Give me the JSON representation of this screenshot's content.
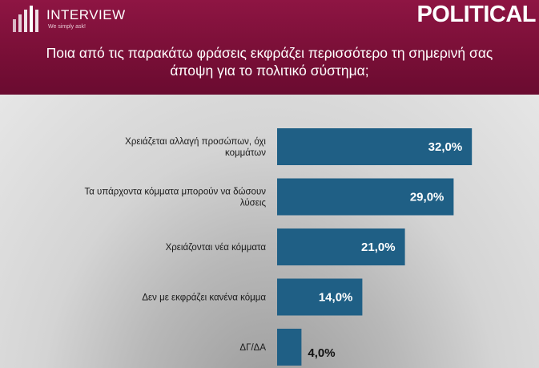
{
  "header": {
    "brand": "INTERVIEW",
    "tagline": "We simply ask!",
    "logo_icon": "bars-logo-icon",
    "badge": "POLITICAL",
    "question": "Ποια από τις παρακάτω φράσεις εκφράζει περισσότερο τη σημερινή σας άποψη για το πολιτικό σύστημα;"
  },
  "colors": {
    "header": "#7a0f37",
    "bar": "#1f5f85",
    "value_inside": "#ffffff",
    "value_outside": "#111111"
  },
  "chart_data": {
    "type": "bar",
    "orientation": "horizontal",
    "categories": [
      [
        "Χρειάζεται αλλαγή προσώπων, όχι",
        "κομμάτων"
      ],
      [
        "Τα υπάρχοντα κόμματα μπορούν να δώσουν",
        "λύσεις"
      ],
      [
        "Χρειάζονται νέα κόμματα"
      ],
      [
        "Δεν με εκφράζει κανένα κόμμα"
      ],
      [
        "ΔΓ/ΔΑ"
      ]
    ],
    "values": [
      32.0,
      29.0,
      21.0,
      14.0,
      4.0
    ],
    "value_labels": [
      "32,0%",
      "29,0%",
      "21,0%",
      "14,0%",
      "4,0%"
    ],
    "xlim": [
      0,
      35
    ],
    "grid": false,
    "legend": "none"
  }
}
